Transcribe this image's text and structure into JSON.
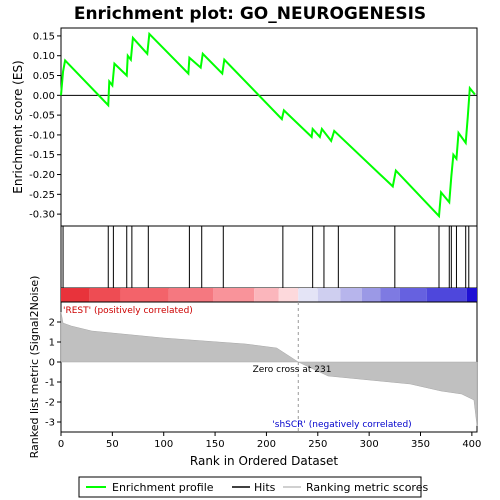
{
  "chart_data": {
    "type": "line",
    "title": "Enrichment plot: GO_NEUROGENESIS",
    "xlabel": "Rank in Ordered Dataset",
    "panels": {
      "enrichment": {
        "ylabel": "Enrichment score (ES)",
        "ylim": [
          -0.33,
          0.17
        ],
        "yticks": [
          0.15,
          0.1,
          0.05,
          0.0,
          -0.05,
          -0.1,
          -0.15,
          -0.2,
          -0.25,
          -0.3
        ],
        "ytick_labels": [
          "0.15",
          "0.10",
          "0.05",
          "0.00",
          "-0.05",
          "-0.10",
          "-0.15",
          "-0.20",
          "-0.25",
          "-0.30"
        ],
        "series": [
          {
            "name": "Enrichment profile",
            "color": "#00ff00",
            "x": [
              0,
              2,
              4,
              46,
              47,
              50,
              52,
              64,
              65,
              68,
              70,
              84,
              86,
              124,
              125,
              136,
              138,
              157,
              159,
              215,
              217,
              244,
              245,
              252,
              254,
              263,
              266,
              323,
              326,
              368,
              370,
              378,
              380,
              382,
              385,
              387,
              394,
              396,
              398,
              403
            ],
            "values": [
              0.0,
              0.06,
              0.088,
              -0.025,
              0.035,
              0.025,
              0.08,
              0.05,
              0.1,
              0.09,
              0.145,
              0.105,
              0.155,
              0.055,
              0.095,
              0.07,
              0.105,
              0.055,
              0.09,
              -0.06,
              -0.038,
              -0.105,
              -0.085,
              -0.105,
              -0.085,
              -0.115,
              -0.09,
              -0.23,
              -0.19,
              -0.305,
              -0.245,
              -0.27,
              -0.205,
              -0.15,
              -0.16,
              -0.095,
              -0.12,
              -0.055,
              0.018,
              0.002
            ]
          }
        ]
      },
      "hits": {
        "name": "Hits",
        "positions": [
          2,
          46,
          51,
          64,
          69,
          85,
          125,
          137,
          158,
          216,
          245,
          256,
          270,
          325,
          368,
          378,
          380,
          385,
          394,
          397
        ]
      },
      "ranked_metric": {
        "ylabel": "Ranked list metric (Signal2Noise)",
        "ylim": [
          -3.5,
          3.0
        ],
        "yticks": [
          2,
          1,
          0,
          -1,
          -2,
          -3
        ],
        "ytick_labels": [
          "2",
          "1",
          "0",
          "-1",
          "-2",
          "-3"
        ],
        "series": [
          {
            "name": "Ranking metric scores",
            "color": "#c0c0c0",
            "x": [
              0,
              2,
              10,
              30,
              60,
              100,
              140,
              180,
              210,
              231,
              260,
              300,
              340,
              370,
              390,
              402,
              405
            ],
            "values": [
              2.5,
              1.95,
              1.8,
              1.55,
              1.4,
              1.2,
              1.05,
              0.9,
              0.7,
              0.0,
              -0.7,
              -0.9,
              -1.1,
              -1.45,
              -1.6,
              -1.9,
              -3.2
            ]
          }
        ],
        "zero_cross_label": "Zero cross at 231",
        "zero_cross": 231,
        "positive_label": "'REST' (positively correlated)",
        "negative_label": "'shSCR' (negatively correlated)"
      }
    },
    "xlim": [
      0,
      405
    ],
    "xticks": [
      0,
      50,
      100,
      150,
      200,
      250,
      300,
      350,
      400
    ],
    "xtick_labels": [
      "0",
      "50",
      "100",
      "150",
      "200",
      "250",
      "300",
      "350",
      "400"
    ],
    "legend": {
      "placement": "bottom",
      "entries": [
        "Enrichment profile",
        "Hits",
        "Ranking metric scores"
      ]
    },
    "colors": {
      "profile": "#00ff00",
      "hits": "#000000",
      "metric_fill": "#c0c0c0",
      "positive_label": "#cc0000",
      "negative_label": "#0000cc"
    },
    "heatbar": {
      "segments": [
        {
          "from": 0,
          "to": 28,
          "color": "#e8333b"
        },
        {
          "from": 28,
          "to": 58,
          "color": "#ee4c53"
        },
        {
          "from": 58,
          "to": 105,
          "color": "#f3636a"
        },
        {
          "from": 105,
          "to": 148,
          "color": "#f57880"
        },
        {
          "from": 148,
          "to": 188,
          "color": "#f9939a"
        },
        {
          "from": 188,
          "to": 212,
          "color": "#fbb6bc"
        },
        {
          "from": 212,
          "to": 231,
          "color": "#fdd9dc"
        },
        {
          "from": 231,
          "to": 250,
          "color": "#e4e4f6"
        },
        {
          "from": 250,
          "to": 272,
          "color": "#cfcff0"
        },
        {
          "from": 272,
          "to": 293,
          "color": "#b7b5ec"
        },
        {
          "from": 293,
          "to": 311,
          "color": "#9b99e6"
        },
        {
          "from": 311,
          "to": 330,
          "color": "#7e7ae2"
        },
        {
          "from": 330,
          "to": 356,
          "color": "#6661e0"
        },
        {
          "from": 356,
          "to": 395,
          "color": "#4e47dc"
        },
        {
          "from": 395,
          "to": 405,
          "color": "#1e10d4"
        }
      ]
    }
  }
}
